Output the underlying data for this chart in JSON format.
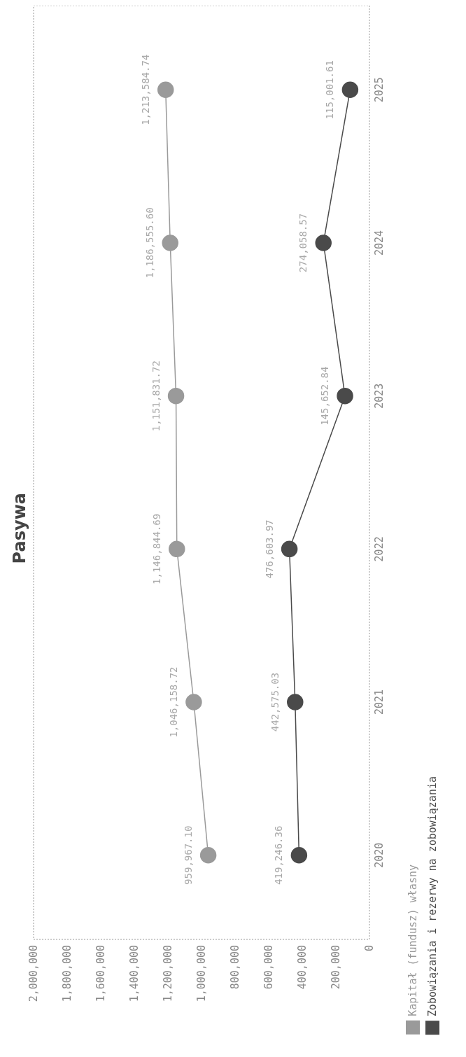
{
  "chart_data": {
    "type": "line",
    "orientation": "horizontal",
    "title": "Pasywa",
    "categories": [
      "2025",
      "2024",
      "2023",
      "2022",
      "2021",
      "2020"
    ],
    "series": [
      {
        "name": "Kapitał (fundusz) własny",
        "color": "#9a9a9a",
        "values": [
          1213584.74,
          1186555.6,
          1151831.72,
          1146844.69,
          1046158.72,
          959967.1
        ],
        "value_labels": [
          "1,213,584.74",
          "1,186,555.60",
          "1,151,831.72",
          "1,146,844.69",
          "1,046,158.72",
          "959,967.10"
        ]
      },
      {
        "name": "Zobowiązania i rezerwy na zobowiązania",
        "color": "#4a4a4a",
        "values": [
          115001.61,
          274058.57,
          145652.84,
          476603.97,
          442575.03,
          419246.36
        ],
        "value_labels": [
          "115,001.61",
          "274,058.57",
          "145,652.84",
          "476,603.97",
          "442,575.03",
          "419,246.36"
        ]
      }
    ],
    "xlim": [
      2000000,
      0
    ],
    "xticks": [
      {
        "value": 2000000,
        "label": "2,000,000"
      },
      {
        "value": 1800000,
        "label": "1,800,000"
      },
      {
        "value": 1600000,
        "label": "1,600,000"
      },
      {
        "value": 1400000,
        "label": "1,400,000"
      },
      {
        "value": 1200000,
        "label": "1,200,000"
      },
      {
        "value": 1000000,
        "label": "1,000,000"
      },
      {
        "value": 800000,
        "label": "800,000"
      },
      {
        "value": 600000,
        "label": "600,000"
      },
      {
        "value": 400000,
        "label": "400,000"
      },
      {
        "value": 200000,
        "label": "200,000"
      },
      0
    ],
    "grid": false,
    "legend": "bottom right",
    "marker": "circle",
    "line_style": "solid"
  }
}
